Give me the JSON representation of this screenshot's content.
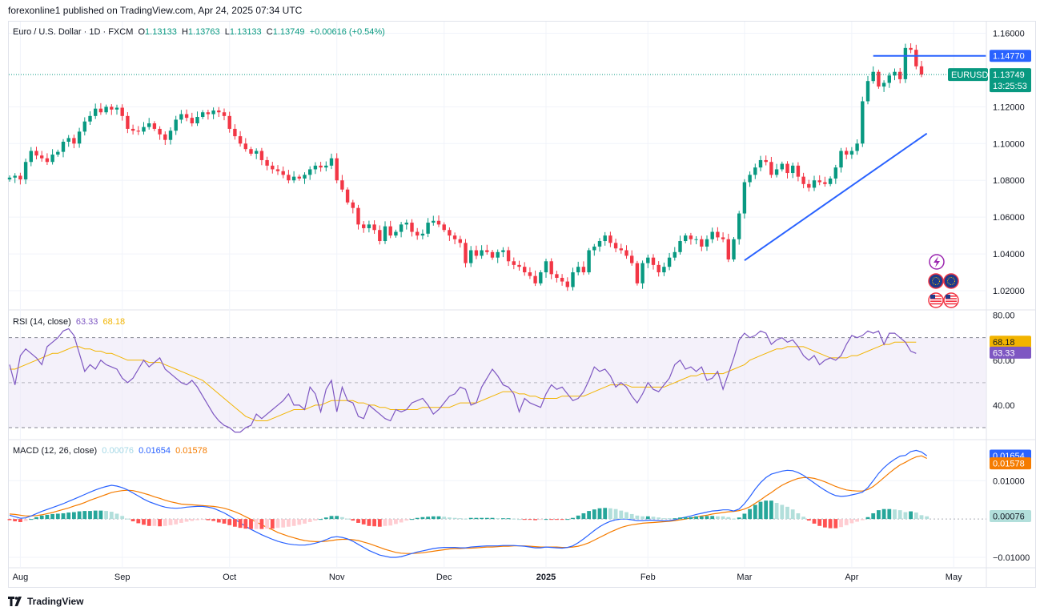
{
  "header": {
    "published": "forexonline1 published on TradingView.com, Apr 24, 2025 07:34 UTC"
  },
  "legend": {
    "symbol": "Euro / U.S. Dollar · 1D · FXCM",
    "o_label": "O",
    "o": "1.13133",
    "h_label": "H",
    "h": "1.13763",
    "l_label": "L",
    "l": "1.13133",
    "c_label": "C",
    "c": "1.13749",
    "change": "+0.00616 (+0.54%)"
  },
  "rsi_legend": {
    "label": "RSI (14, close)",
    "value": "63.33",
    "ma": "68.18"
  },
  "macd_legend": {
    "label": "MACD (12, 26, close)",
    "hist": "0.00076",
    "macd": "0.01654",
    "signal": "0.01578"
  },
  "footer": {
    "brand": "TradingView"
  },
  "colors": {
    "up": "#089981",
    "down": "#f23645",
    "rsi": "#7e57c2",
    "rsi_ma": "#f2b400",
    "macd": "#2962ff",
    "signal": "#f57c00",
    "trend": "#2962ff"
  },
  "chart_data": [
    {
      "type": "candlestick",
      "symbol": "EURUSD",
      "ylim": [
        1.01,
        1.165
      ],
      "y_ticks": [
        "1.16000",
        "1.12000",
        "1.10000",
        "1.08000",
        "1.06000",
        "1.04000",
        "1.02000"
      ],
      "y_tick_values": [
        1.16,
        1.12,
        1.1,
        1.08,
        1.06,
        1.04,
        1.02
      ],
      "x_labels": [
        "Aug",
        "Sep",
        "Oct",
        "Nov",
        "Dec",
        "2025",
        "Feb",
        "Mar",
        "Apr",
        "May"
      ],
      "x_label_index": [
        2,
        21,
        41,
        61,
        81,
        100,
        119,
        137,
        157,
        176
      ],
      "last_price": "1.13749",
      "last_price_value": 1.13749,
      "countdown": "13:25:53",
      "resistance": "1.14770",
      "resistance_value": 1.1477,
      "symbol_tag": "EURUSD",
      "closes": [
        1.0815,
        1.0825,
        1.0805,
        1.09,
        1.096,
        1.0935,
        1.092,
        1.09,
        1.094,
        1.0955,
        1.101,
        1.103,
        1.1,
        1.1065,
        1.112,
        1.115,
        1.119,
        1.117,
        1.12,
        1.1185,
        1.1195,
        1.115,
        1.108,
        1.107,
        1.1065,
        1.109,
        1.111,
        1.108,
        1.105,
        1.102,
        1.107,
        1.113,
        1.116,
        1.114,
        1.111,
        1.1145,
        1.117,
        1.116,
        1.118,
        1.117,
        1.115,
        1.108,
        1.104,
        1.1,
        1.097,
        1.0945,
        1.096,
        1.091,
        1.088,
        1.086,
        1.085,
        1.083,
        1.08,
        1.082,
        1.081,
        1.083,
        1.086,
        1.088,
        1.087,
        1.088,
        1.092,
        1.08,
        1.075,
        1.068,
        1.065,
        1.056,
        1.054,
        1.056,
        1.053,
        1.047,
        1.055,
        1.05,
        1.052,
        1.056,
        1.057,
        1.052,
        1.05,
        1.051,
        1.057,
        1.058,
        1.056,
        1.053,
        1.05,
        1.048,
        1.046,
        1.035,
        1.042,
        1.039,
        1.042,
        1.041,
        1.038,
        1.041,
        1.042,
        1.036,
        1.034,
        1.033,
        1.03,
        1.028,
        1.024,
        1.03,
        1.036,
        1.029,
        1.027,
        1.025,
        1.022,
        1.03,
        1.033,
        1.03,
        1.042,
        1.044,
        1.047,
        1.05,
        1.046,
        1.043,
        1.042,
        1.039,
        1.035,
        1.024,
        1.035,
        1.038,
        1.034,
        1.03,
        1.033,
        1.038,
        1.041,
        1.047,
        1.05,
        1.048,
        1.048,
        1.044,
        1.048,
        1.052,
        1.049,
        1.048,
        1.037,
        1.048,
        1.062,
        1.079,
        1.083,
        1.087,
        1.091,
        1.09,
        1.083,
        1.086,
        1.089,
        1.084,
        1.088,
        1.082,
        1.078,
        1.076,
        1.08,
        1.079,
        1.078,
        1.081,
        1.087,
        1.096,
        1.094,
        1.096,
        1.1,
        1.123,
        1.134,
        1.139,
        1.131,
        1.133,
        1.137,
        1.139,
        1.135,
        1.152,
        1.151,
        1.142,
        1.1375
      ]
    },
    {
      "type": "line",
      "name": "RSI (14, close)",
      "ylim": [
        25,
        82
      ],
      "y_ticks": [
        "80.00",
        "60.00",
        "40.00"
      ],
      "y_tick_values": [
        80,
        60,
        40
      ],
      "bands": [
        70,
        50,
        30
      ],
      "value": "63.33",
      "value_num": 63.33,
      "ma_value": "68.18",
      "ma_num": 68.18,
      "rsi": [
        58,
        49,
        62,
        65,
        63,
        61,
        58,
        66,
        68,
        70,
        73,
        74,
        71,
        63,
        55,
        58,
        56,
        60,
        58,
        57,
        56,
        52,
        50,
        52,
        56,
        60,
        57,
        59,
        61,
        56,
        54,
        52,
        50,
        49,
        51,
        48,
        44,
        40,
        36,
        33,
        31,
        30,
        28,
        28,
        30,
        31,
        36,
        34,
        36,
        38,
        40,
        42,
        45,
        40,
        40,
        38,
        48,
        45,
        37,
        47,
        51,
        37,
        48,
        42,
        41,
        35,
        34,
        40,
        38,
        36,
        34,
        33,
        38,
        37,
        38,
        41,
        42,
        43,
        40,
        36,
        38,
        41,
        44,
        45,
        48,
        47,
        40,
        41,
        48,
        52,
        56,
        53,
        49,
        48,
        45,
        37,
        43,
        41,
        40,
        39,
        45,
        49,
        47,
        48,
        45,
        42,
        43,
        46,
        51,
        57,
        55,
        56,
        53,
        48,
        50,
        48,
        44,
        41,
        45,
        50,
        47,
        46,
        49,
        52,
        58,
        60,
        56,
        57,
        55,
        57,
        51,
        52,
        55,
        47,
        54,
        61,
        69,
        72,
        70,
        71,
        73,
        72,
        67,
        69,
        70,
        68,
        69,
        66,
        62,
        60,
        62,
        58,
        60,
        61,
        60,
        62,
        67,
        71,
        70,
        71,
        73,
        72,
        73,
        67,
        72,
        72,
        70,
        68,
        64,
        63
      ],
      "rsi_ma": [
        56,
        56,
        57,
        58,
        59,
        60,
        61,
        62,
        63,
        63,
        64,
        65,
        66,
        66,
        65,
        65,
        64,
        64,
        63,
        63,
        62,
        61,
        60,
        60,
        60,
        60,
        59,
        59,
        59,
        58,
        57,
        56,
        55,
        54,
        53,
        52,
        51,
        49,
        47,
        45,
        43,
        41,
        39,
        37,
        35,
        34,
        33,
        33,
        33,
        34,
        35,
        36,
        37,
        38,
        38,
        38,
        39,
        40,
        40,
        41,
        42,
        42,
        42,
        42,
        42,
        41,
        41,
        40,
        40,
        39,
        39,
        38,
        38,
        38,
        38,
        38,
        38,
        39,
        39,
        39,
        39,
        39,
        39,
        40,
        41,
        41,
        41,
        41,
        42,
        43,
        44,
        45,
        46,
        46,
        46,
        45,
        45,
        44,
        44,
        43,
        43,
        43,
        43,
        44,
        44,
        44,
        44,
        44,
        45,
        46,
        47,
        48,
        49,
        49,
        49,
        49,
        48,
        48,
        48,
        48,
        48,
        48,
        48,
        49,
        50,
        51,
        52,
        53,
        53,
        54,
        54,
        54,
        54,
        54,
        55,
        56,
        57,
        58,
        60,
        61,
        62,
        63,
        64,
        65,
        65,
        66,
        66,
        66,
        66,
        65,
        64,
        63,
        62,
        61,
        61,
        61,
        61,
        62,
        62,
        63,
        64,
        65,
        66,
        67,
        67,
        68,
        68,
        68,
        68,
        68
      ]
    },
    {
      "type": "bar",
      "name": "MACD (12, 26, close)",
      "ylim": [
        -0.0125,
        0.0205
      ],
      "y_ticks": [
        "0.01000",
        "−0.01000"
      ],
      "y_tick_values": [
        0.01,
        -0.01
      ],
      "hist_value": "0.00076",
      "hist_num": 0.00076,
      "macd_value": "0.01654",
      "macd_num": 0.01654,
      "signal_value": "0.01578",
      "signal_num": 0.01578,
      "macd": [
        0.001,
        0.0006,
        0.0002,
        0.0003,
        0.0008,
        0.0014,
        0.002,
        0.0025,
        0.003,
        0.0035,
        0.004,
        0.0046,
        0.0052,
        0.0058,
        0.0064,
        0.007,
        0.0076,
        0.0081,
        0.0085,
        0.0088,
        0.0086,
        0.0082,
        0.0076,
        0.0068,
        0.006,
        0.0052,
        0.0045,
        0.004,
        0.0035,
        0.0031,
        0.0029,
        0.0028,
        0.0029,
        0.0031,
        0.0032,
        0.0033,
        0.0033,
        0.0031,
        0.0028,
        0.0022,
        0.0016,
        0.0008,
        -0.0001,
        -0.001,
        -0.0019,
        -0.0027,
        -0.0034,
        -0.0041,
        -0.0047,
        -0.0053,
        -0.0058,
        -0.0062,
        -0.0065,
        -0.0067,
        -0.0068,
        -0.0068,
        -0.0066,
        -0.0063,
        -0.0059,
        -0.0054,
        -0.0048,
        -0.0046,
        -0.0048,
        -0.0052,
        -0.0058,
        -0.0066,
        -0.0074,
        -0.0082,
        -0.0088,
        -0.0094,
        -0.0097,
        -0.01,
        -0.01,
        -0.0098,
        -0.0094,
        -0.009,
        -0.0086,
        -0.0083,
        -0.008,
        -0.0077,
        -0.0075,
        -0.0074,
        -0.0074,
        -0.0074,
        -0.0075,
        -0.0075,
        -0.0073,
        -0.0072,
        -0.0071,
        -0.007,
        -0.007,
        -0.007,
        -0.0069,
        -0.0069,
        -0.0069,
        -0.007,
        -0.0071,
        -0.0073,
        -0.0075,
        -0.0075,
        -0.0073,
        -0.0074,
        -0.0075,
        -0.0076,
        -0.0074,
        -0.007,
        -0.0062,
        -0.0052,
        -0.0041,
        -0.003,
        -0.002,
        -0.0012,
        -0.0006,
        -0.0002,
        0.0,
        0.0,
        -0.0002,
        -0.0004,
        -0.0004,
        -0.0003,
        -0.0003,
        -0.0004,
        -0.0005,
        -0.0004,
        -0.0002,
        0.0002,
        0.0005,
        0.0008,
        0.0012,
        0.0015,
        0.0018,
        0.0021,
        0.0022,
        0.0024,
        0.0024,
        0.0021,
        0.0026,
        0.004,
        0.0058,
        0.0078,
        0.0095,
        0.0108,
        0.0117,
        0.0121,
        0.0125,
        0.0127,
        0.0126,
        0.0121,
        0.0114,
        0.0104,
        0.0094,
        0.0084,
        0.0075,
        0.0067,
        0.0061,
        0.0059,
        0.006,
        0.0063,
        0.0066,
        0.007,
        0.0082,
        0.01,
        0.0119,
        0.0134,
        0.0146,
        0.0156,
        0.0164,
        0.0166,
        0.0176,
        0.0179,
        0.0175,
        0.0165
      ],
      "signal": [
        0.0013,
        0.0012,
        0.001,
        0.0008,
        0.0008,
        0.0009,
        0.0011,
        0.0014,
        0.0017,
        0.0021,
        0.0025,
        0.0029,
        0.0034,
        0.0038,
        0.0043,
        0.0049,
        0.0054,
        0.0059,
        0.0064,
        0.0069,
        0.0072,
        0.0074,
        0.0075,
        0.0074,
        0.0071,
        0.0067,
        0.0063,
        0.0058,
        0.0054,
        0.0049,
        0.0045,
        0.0042,
        0.0039,
        0.0038,
        0.0037,
        0.0036,
        0.0035,
        0.0034,
        0.0033,
        0.0031,
        0.0028,
        0.0024,
        0.0019,
        0.0013,
        0.0006,
        -0.0001,
        -0.0008,
        -0.0015,
        -0.0022,
        -0.0028,
        -0.0035,
        -0.004,
        -0.0045,
        -0.0049,
        -0.0053,
        -0.0056,
        -0.0058,
        -0.0059,
        -0.0059,
        -0.0058,
        -0.0056,
        -0.0054,
        -0.0053,
        -0.0053,
        -0.0054,
        -0.0056,
        -0.006,
        -0.0064,
        -0.0069,
        -0.0074,
        -0.0079,
        -0.0083,
        -0.0087,
        -0.0089,
        -0.009,
        -0.009,
        -0.0089,
        -0.0088,
        -0.0086,
        -0.0084,
        -0.0082,
        -0.008,
        -0.0078,
        -0.0077,
        -0.0077,
        -0.0076,
        -0.0076,
        -0.0075,
        -0.0074,
        -0.0073,
        -0.0073,
        -0.0072,
        -0.0071,
        -0.0071,
        -0.007,
        -0.007,
        -0.007,
        -0.0071,
        -0.0072,
        -0.0073,
        -0.0073,
        -0.0073,
        -0.0073,
        -0.0074,
        -0.0074,
        -0.0073,
        -0.0071,
        -0.0067,
        -0.0062,
        -0.0055,
        -0.0048,
        -0.0041,
        -0.0034,
        -0.0028,
        -0.0022,
        -0.0018,
        -0.0015,
        -0.0013,
        -0.0011,
        -0.001,
        -0.0009,
        -0.0008,
        -0.0007,
        -0.0006,
        -0.0004,
        -0.0002,
        0.0,
        0.0003,
        0.0005,
        0.0008,
        0.001,
        0.0013,
        0.0015,
        0.0017,
        0.0019,
        0.002,
        0.0022,
        0.0026,
        0.0032,
        0.0041,
        0.005,
        0.006,
        0.0069,
        0.0079,
        0.0088,
        0.0095,
        0.0101,
        0.0106,
        0.0108,
        0.0108,
        0.0106,
        0.0102,
        0.0097,
        0.0091,
        0.0085,
        0.008,
        0.0076,
        0.0074,
        0.0073,
        0.0073,
        0.0077,
        0.0085,
        0.0096,
        0.0108,
        0.012,
        0.0131,
        0.0141,
        0.0148,
        0.0156,
        0.0162,
        0.0165,
        0.0158
      ]
    }
  ]
}
